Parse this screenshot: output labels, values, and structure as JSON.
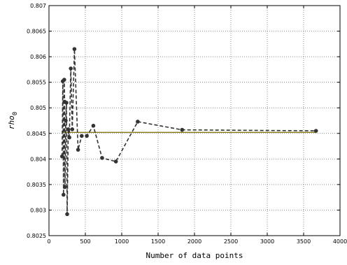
{
  "chart_data": {
    "type": "line",
    "title": "",
    "xlabel": "Number of data points",
    "ylabel": "rho",
    "ylabel_subscript": "0",
    "xlim": [
      0,
      4000
    ],
    "ylim": [
      0.8025,
      0.807
    ],
    "x_ticks": [
      0,
      500,
      1000,
      1500,
      2000,
      2500,
      3000,
      3500,
      4000
    ],
    "y_ticks": [
      0.8025,
      0.803,
      0.8035,
      0.804,
      0.8045,
      0.805,
      0.8055,
      0.806,
      0.8065,
      0.807
    ],
    "x_tick_labels": [
      "0",
      "500",
      "1000",
      "1500",
      "2000",
      "2500",
      "3000",
      "3500",
      "4000"
    ],
    "y_tick_labels": [
      "0.8025",
      "0.803",
      "0.8035",
      "0.804",
      "0.8045",
      "0.805",
      "0.8055",
      "0.806",
      "0.8065",
      "0.807"
    ],
    "grid": true,
    "colors": {
      "series": "#333333",
      "reference": "#8b7a1a"
    },
    "series": [
      {
        "style": "dashed-markers",
        "points": [
          [
            180,
            0.80405
          ],
          [
            190,
            0.80552
          ],
          [
            200,
            0.8033
          ],
          [
            210,
            0.80555
          ],
          [
            215,
            0.80512
          ],
          [
            220,
            0.80345
          ],
          [
            230,
            0.80475
          ],
          [
            240,
            0.8051
          ],
          [
            250,
            0.80292
          ],
          [
            265,
            0.80458
          ],
          [
            280,
            0.80442
          ],
          [
            300,
            0.80577
          ],
          [
            320,
            0.80458
          ],
          [
            350,
            0.80615
          ],
          [
            400,
            0.80418
          ],
          [
            450,
            0.80445
          ],
          [
            520,
            0.80445
          ],
          [
            610,
            0.80465
          ],
          [
            730,
            0.80402
          ],
          [
            920,
            0.80395
          ],
          [
            1220,
            0.80473
          ],
          [
            1830,
            0.80457
          ],
          [
            3670,
            0.80455
          ]
        ]
      },
      {
        "style": "solid",
        "points": [
          [
            180,
            0.80452
          ],
          [
            3670,
            0.80452
          ]
        ]
      }
    ]
  }
}
